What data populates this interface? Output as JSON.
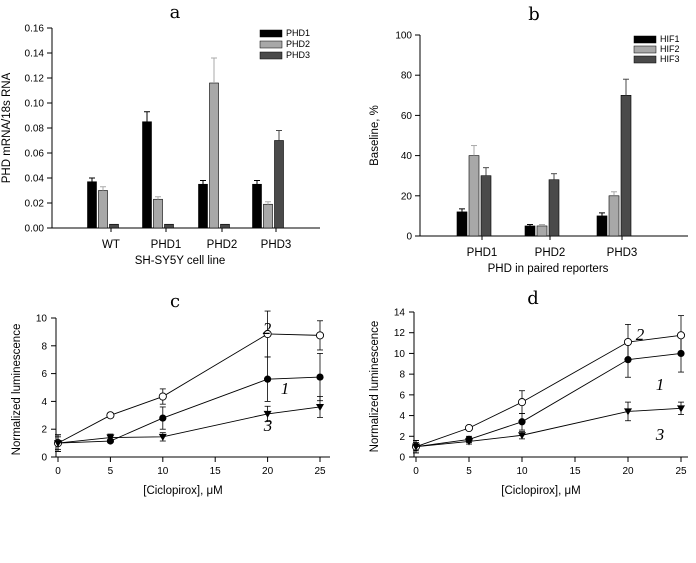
{
  "figure": {
    "panels": [
      "a",
      "b",
      "c",
      "d"
    ]
  },
  "colors": {
    "series1": "#000000",
    "series2": "#a8a8a8",
    "series3": "#4a4a4a",
    "axis": "#000000"
  },
  "chart_data": [
    {
      "id": "a",
      "type": "bar",
      "panel_label": "a",
      "title": "",
      "xlabel": "SH-SY5Y cell line",
      "ylabel": "PHD mRNA/18s RNA",
      "ylim": [
        0,
        0.16
      ],
      "yticks": [
        "0.00",
        "0.02",
        "0.04",
        "0.06",
        "0.08",
        "0.10",
        "0.12",
        "0.14",
        "0.16"
      ],
      "categories": [
        "WT",
        "PHD1",
        "PHD2",
        "PHD3"
      ],
      "legend_position": "top-right",
      "series": [
        {
          "name": "PHD1",
          "values": [
            0.037,
            0.085,
            0.035,
            0.035
          ],
          "errors": [
            0.003,
            0.008,
            0.003,
            0.003
          ]
        },
        {
          "name": "PHD2",
          "values": [
            0.03,
            0.023,
            0.116,
            0.019
          ],
          "errors": [
            0.003,
            0.002,
            0.02,
            0.002
          ]
        },
        {
          "name": "PHD3",
          "values": [
            0.003,
            0.003,
            0.003,
            0.07
          ],
          "errors": [
            0.0,
            0.0,
            0.0,
            0.008
          ]
        }
      ]
    },
    {
      "id": "b",
      "type": "bar",
      "panel_label": "b",
      "title": "",
      "xlabel": "PHD in paired reporters",
      "ylabel": "Baseline, %",
      "ylim": [
        0,
        100
      ],
      "yticks": [
        "0",
        "20",
        "40",
        "60",
        "80",
        "100"
      ],
      "categories": [
        "PHD1",
        "PHD2",
        "PHD3"
      ],
      "legend_position": "top-right",
      "series": [
        {
          "name": "HIF1",
          "values": [
            12,
            5,
            10
          ],
          "errors": [
            1.5,
            0.7,
            1.5
          ]
        },
        {
          "name": "HIF2",
          "values": [
            40,
            5,
            20
          ],
          "errors": [
            5,
            0.7,
            2
          ]
        },
        {
          "name": "HIF3",
          "values": [
            30,
            28,
            70
          ],
          "errors": [
            4,
            3,
            8
          ]
        }
      ]
    },
    {
      "id": "c",
      "type": "line",
      "panel_label": "c",
      "title": "",
      "xlabel": "[Ciclopirox], μM",
      "ylabel": "Normalized luminescence",
      "xlim": [
        0,
        25
      ],
      "ylim": [
        0,
        10
      ],
      "xticks": [
        "0",
        "5",
        "10",
        "15",
        "20",
        "25"
      ],
      "yticks": [
        "0",
        "2",
        "4",
        "6",
        "8",
        "10"
      ],
      "x": [
        0,
        5,
        10,
        20,
        25
      ],
      "series": [
        {
          "name": "1",
          "marker": "filled-circle",
          "values": [
            1.0,
            1.15,
            2.8,
            5.6,
            5.75
          ],
          "errors": [
            0.6,
            0.1,
            0.8,
            1.6,
            1.7
          ]
        },
        {
          "name": "2",
          "marker": "open-circle",
          "values": [
            1.0,
            3.0,
            4.35,
            8.85,
            8.75
          ],
          "errors": [
            0.6,
            0.1,
            0.55,
            1.65,
            1.05
          ]
        },
        {
          "name": "3",
          "marker": "filled-triangle-down",
          "values": [
            1.0,
            1.4,
            1.45,
            3.1,
            3.6
          ],
          "errors": [
            0.45,
            0.25,
            0.3,
            0.55,
            0.75
          ]
        }
      ],
      "curve_labels": [
        "2",
        "1",
        "3"
      ]
    },
    {
      "id": "d",
      "type": "line",
      "panel_label": "d",
      "title": "",
      "xlabel": "[Ciclopirox], μM",
      "ylabel": "Normalized luminescence",
      "xlim": [
        0,
        25
      ],
      "ylim": [
        0,
        14
      ],
      "xticks": [
        "0",
        "5",
        "10",
        "15",
        "20",
        "25"
      ],
      "yticks": [
        "0",
        "2",
        "4",
        "6",
        "8",
        "10",
        "12",
        "14"
      ],
      "x": [
        0,
        5,
        10,
        20,
        25
      ],
      "series": [
        {
          "name": "1",
          "marker": "filled-circle",
          "values": [
            1.0,
            1.7,
            3.4,
            9.4,
            10.0
          ],
          "errors": [
            0.6,
            0.3,
            0.8,
            1.7,
            1.8
          ]
        },
        {
          "name": "2",
          "marker": "open-circle",
          "values": [
            1.0,
            2.8,
            5.3,
            11.1,
            11.75
          ],
          "errors": [
            0.6,
            0.2,
            1.1,
            1.7,
            1.9
          ]
        },
        {
          "name": "3",
          "marker": "filled-triangle-down",
          "values": [
            1.0,
            1.5,
            2.1,
            4.4,
            4.7
          ],
          "errors": [
            0.4,
            0.25,
            0.35,
            0.9,
            0.6
          ]
        }
      ],
      "curve_labels": [
        "2",
        "1",
        "3"
      ]
    }
  ]
}
